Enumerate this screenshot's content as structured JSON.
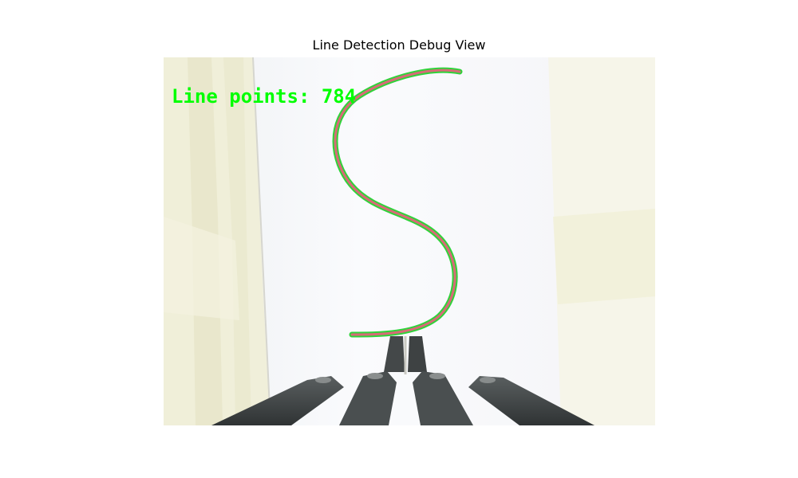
{
  "figure": {
    "title": "Line Detection Debug View"
  },
  "overlay": {
    "text": "Line points: 784",
    "color": "#00ff00"
  },
  "detected_line": {
    "core_color": "#d86a78",
    "outline_color": "#2fd33a"
  },
  "scene": {
    "background_color": "#f7f7fb",
    "curtain_color": "#f1f0d8",
    "gripper_color": "#3a3f40"
  }
}
